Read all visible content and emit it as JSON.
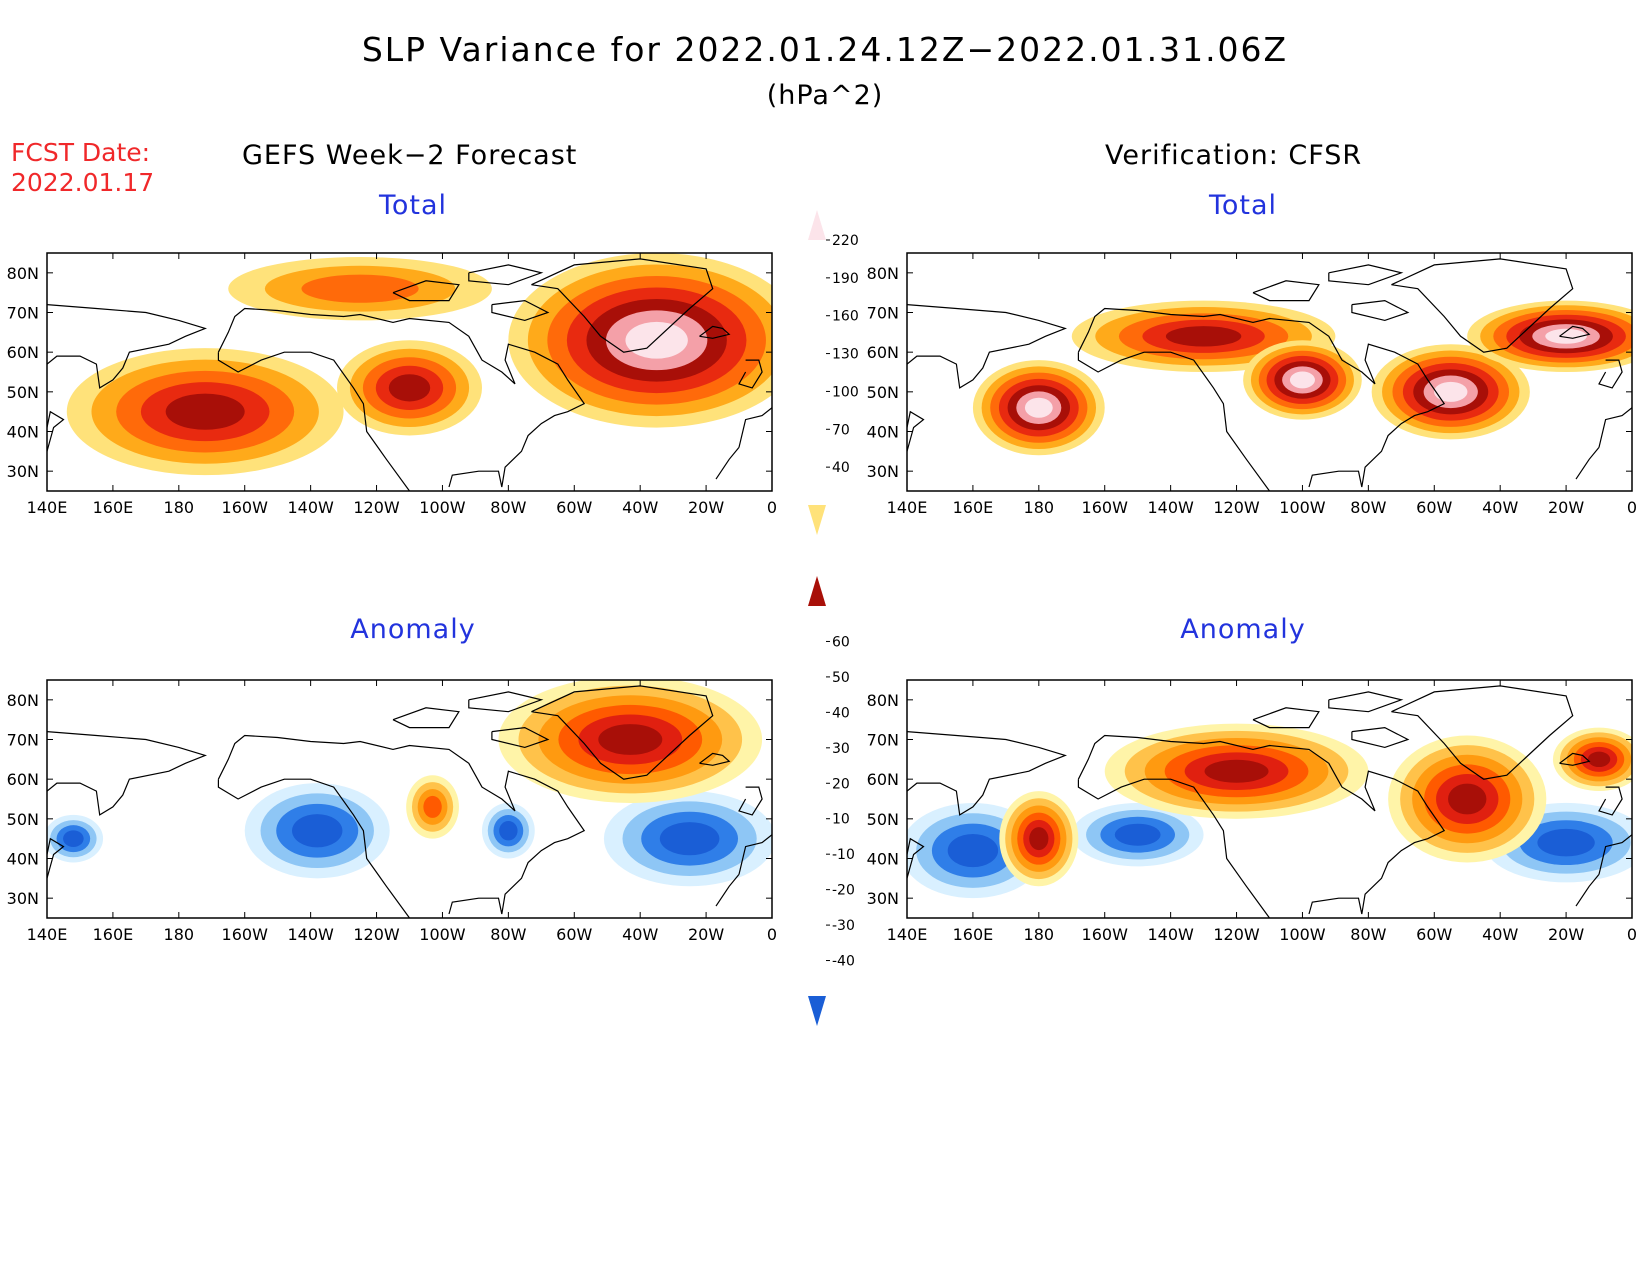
{
  "title": "SLP Variance for 2022.01.24.12Z−2022.01.31.06Z",
  "units": "(hPa^2)",
  "forecast_date": {
    "label": "FCST Date:",
    "value": "2022.01.17"
  },
  "columns": [
    {
      "title": "GEFS Week−2 Forecast"
    },
    {
      "title": "Verification: CFSR"
    }
  ],
  "panel_titles": {
    "total": "Total",
    "anomaly": "Anomaly"
  },
  "map_axes": {
    "lon_ticks": [
      "140E",
      "160E",
      "180",
      "160W",
      "140W",
      "120W",
      "100W",
      "80W",
      "60W",
      "40W",
      "20W",
      "0"
    ],
    "lat_ticks": [
      "80N",
      "70N",
      "60N",
      "50N",
      "40N",
      "30N"
    ],
    "lon_range_deg_east": [
      140,
      360
    ],
    "lat_range_deg_north": [
      25,
      85
    ]
  },
  "colorbars": {
    "total": {
      "levels": [
        "40",
        "70",
        "100",
        "130",
        "160",
        "190",
        "220"
      ],
      "colors": [
        "#ffe27a",
        "#ffaa1a",
        "#ff6a0a",
        "#e82a10",
        "#a80f08",
        "#f4a0a8",
        "#fce4ea"
      ]
    },
    "anomaly": {
      "levels": [
        "-40",
        "-30",
        "-20",
        "-10",
        "10",
        "20",
        "30",
        "40",
        "50",
        "60"
      ],
      "colors": [
        "#1a5ed6",
        "#2f7ee8",
        "#8ec6f5",
        "#d9f0ff",
        "#ffffff",
        "#fff4a8",
        "#ffc24a",
        "#ff9a10",
        "#ff5a00",
        "#e02010",
        "#a80f08"
      ]
    }
  }
}
